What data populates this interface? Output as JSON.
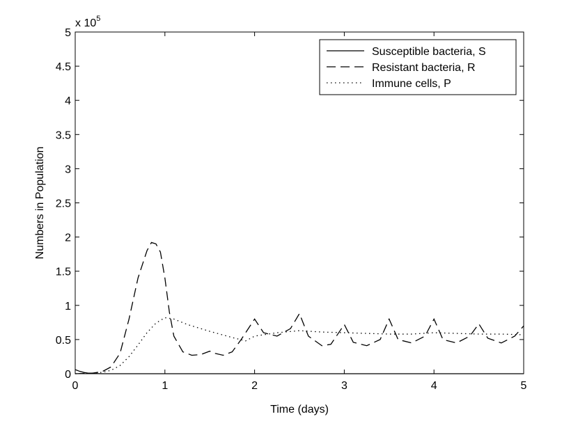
{
  "chart_data": {
    "type": "line",
    "xlabel": "Time (days)",
    "ylabel": "Numbers in Population",
    "xlim": [
      0,
      5
    ],
    "ylim": [
      0,
      500000
    ],
    "exponent_label": "x 10",
    "exponent_power": "5",
    "xticks": [
      "0",
      "1",
      "2",
      "3",
      "4",
      "5"
    ],
    "yticks": [
      "0",
      "0.5",
      "1",
      "1.5",
      "2",
      "2.5",
      "3",
      "3.5",
      "4",
      "4.5",
      "5"
    ],
    "grid": false,
    "legend_position": "top-right",
    "series": [
      {
        "name": "Susceptible bacteria, S",
        "style": "solid",
        "color": "#000000",
        "x": [
          0,
          0.05,
          0.1,
          0.15,
          0.2,
          0.3,
          5
        ],
        "y": [
          6000,
          3500,
          1800,
          800,
          300,
          0,
          0
        ]
      },
      {
        "name": "Resistant bacteria, R",
        "style": "dashed",
        "color": "#000000",
        "x": [
          0,
          0.1,
          0.2,
          0.3,
          0.4,
          0.5,
          0.6,
          0.7,
          0.8,
          0.85,
          0.9,
          0.95,
          1.0,
          1.05,
          1.1,
          1.2,
          1.3,
          1.4,
          1.5,
          1.55,
          1.65,
          1.75,
          1.85,
          2.0,
          2.1,
          2.25,
          2.4,
          2.5,
          2.6,
          2.75,
          2.85,
          3.0,
          3.1,
          3.25,
          3.4,
          3.5,
          3.6,
          3.75,
          3.9,
          4.0,
          4.1,
          4.25,
          4.4,
          4.5,
          4.6,
          4.75,
          4.9,
          5.0
        ],
        "y": [
          0,
          500,
          1000,
          3000,
          10000,
          30000,
          80000,
          140000,
          180000,
          192000,
          190000,
          178000,
          140000,
          90000,
          55000,
          32000,
          27000,
          28000,
          33000,
          30000,
          27000,
          32000,
          50000,
          80000,
          60000,
          55000,
          66000,
          88000,
          55000,
          41000,
          43000,
          72000,
          46000,
          41000,
          50000,
          80000,
          50000,
          45000,
          55000,
          80000,
          50000,
          45000,
          55000,
          73000,
          52000,
          45000,
          55000,
          70000
        ]
      },
      {
        "name": "Immune cells, P",
        "style": "dotted",
        "color": "#000000",
        "x": [
          0,
          0.1,
          0.2,
          0.3,
          0.4,
          0.5,
          0.6,
          0.7,
          0.8,
          0.9,
          1.0,
          1.1,
          1.25,
          1.5,
          1.75,
          1.9,
          2.0,
          2.25,
          2.5,
          2.75,
          3.0,
          3.25,
          3.5,
          3.75,
          4.0,
          4.25,
          4.5,
          4.75,
          5.0
        ],
        "y": [
          0,
          500,
          1000,
          2000,
          5000,
          12000,
          25000,
          42000,
          60000,
          74000,
          82000,
          80000,
          72000,
          62000,
          53000,
          48000,
          55000,
          60000,
          63000,
          61000,
          60000,
          59000,
          58000,
          58000,
          60000,
          59000,
          58000,
          58000,
          57000
        ]
      }
    ]
  }
}
